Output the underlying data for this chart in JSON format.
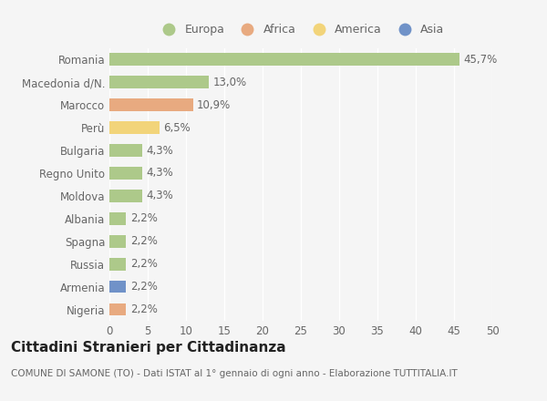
{
  "countries": [
    "Romania",
    "Macedonia d/N.",
    "Marocco",
    "Perù",
    "Bulgaria",
    "Regno Unito",
    "Moldova",
    "Albania",
    "Spagna",
    "Russia",
    "Armenia",
    "Nigeria"
  ],
  "values": [
    45.7,
    13.0,
    10.9,
    6.5,
    4.3,
    4.3,
    4.3,
    2.2,
    2.2,
    2.2,
    2.2,
    2.2
  ],
  "labels": [
    "45,7%",
    "13,0%",
    "10,9%",
    "6,5%",
    "4,3%",
    "4,3%",
    "4,3%",
    "2,2%",
    "2,2%",
    "2,2%",
    "2,2%",
    "2,2%"
  ],
  "colors": [
    "#adc98a",
    "#adc98a",
    "#e8aa80",
    "#f2d47a",
    "#adc98a",
    "#adc98a",
    "#adc98a",
    "#adc98a",
    "#adc98a",
    "#adc98a",
    "#7092c8",
    "#e8aa80"
  ],
  "legend_labels": [
    "Europa",
    "Africa",
    "America",
    "Asia"
  ],
  "legend_colors": [
    "#adc98a",
    "#e8aa80",
    "#f2d47a",
    "#7092c8"
  ],
  "xlim": [
    0,
    50
  ],
  "xticks": [
    0,
    5,
    10,
    15,
    20,
    25,
    30,
    35,
    40,
    45,
    50
  ],
  "title": "Cittadini Stranieri per Cittadinanza",
  "subtitle": "COMUNE DI SAMONE (TO) - Dati ISTAT al 1° gennaio di ogni anno - Elaborazione TUTTITALIA.IT",
  "bg_color": "#f5f5f5",
  "bar_height": 0.55,
  "label_fontsize": 8.5,
  "title_fontsize": 11,
  "subtitle_fontsize": 7.5,
  "ytick_fontsize": 8.5,
  "xtick_fontsize": 8.5,
  "grid_color": "#ffffff",
  "text_color": "#666666",
  "title_color": "#222222"
}
